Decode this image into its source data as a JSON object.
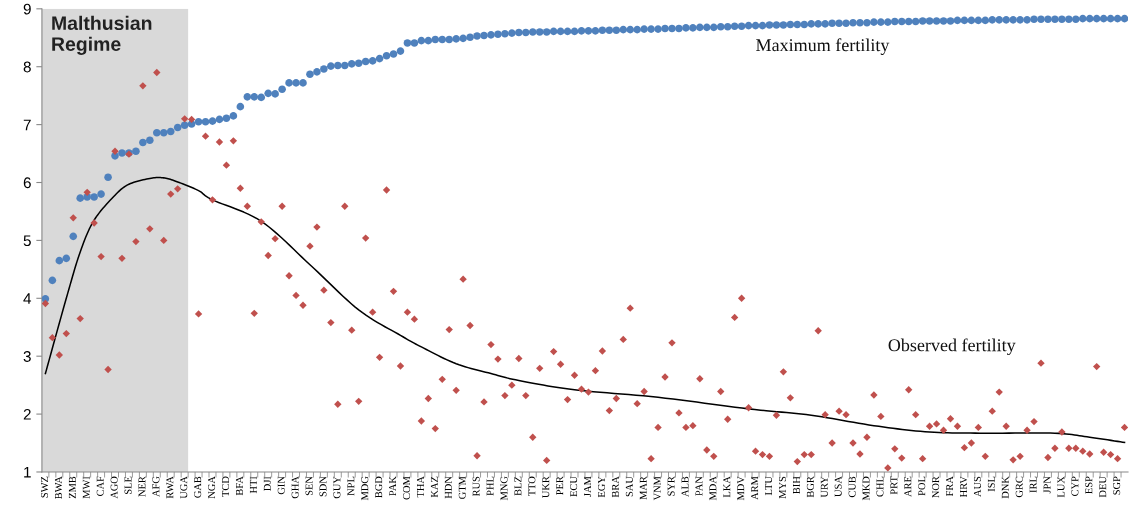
{
  "chart_data": {
    "type": "scatter",
    "categories": [
      "SWZ",
      null,
      "BWA",
      null,
      "ZMB",
      null,
      "MWI",
      null,
      "CAF",
      null,
      "AGO",
      null,
      "SLE",
      null,
      "NER",
      null,
      "AFG",
      null,
      "RWA",
      null,
      "UGA",
      null,
      "GAB",
      null,
      "NGA",
      null,
      "TCD",
      null,
      "BFA",
      null,
      "HTI",
      null,
      "DJI",
      null,
      "GIN",
      null,
      "GHA",
      null,
      "SEN",
      null,
      "SDN",
      null,
      "GUY",
      null,
      "NPL",
      null,
      "MDG",
      null,
      "BGD",
      null,
      "PAK",
      null,
      "COM",
      null,
      "THA",
      null,
      "KAZ",
      null,
      "HDN",
      null,
      "GTM",
      null,
      "RUS",
      null,
      "PHL",
      null,
      "MNG",
      null,
      "BLZ",
      null,
      "TTO",
      null,
      "UKR",
      null,
      "PER",
      null,
      "ECU",
      null,
      "JAM",
      null,
      "EGY",
      null,
      "BRA",
      null,
      "SAU",
      null,
      "MAR",
      null,
      "VNM",
      null,
      "SYR",
      null,
      "ALB",
      null,
      "PAN",
      null,
      "MDA",
      null,
      "LKA",
      null,
      "MDV",
      null,
      "ARM",
      null,
      "LTU",
      null,
      "MYS",
      null,
      "BIH",
      null,
      "BGR",
      null,
      "URY",
      null,
      "USA",
      null,
      "CUB",
      null,
      "MKD",
      null,
      "CHL",
      null,
      "PRT",
      null,
      "ARE",
      null,
      "POL",
      null,
      "NOR",
      null,
      "FRA",
      null,
      "HRV",
      null,
      "AUS",
      null,
      "ISL",
      null,
      "DNK",
      null,
      "GRC",
      null,
      "IRL",
      null,
      "JPN",
      null,
      "LUX",
      null,
      "CYP",
      null,
      "ESP",
      null,
      "DEU",
      null,
      "SGP",
      null
    ],
    "series": [
      {
        "name": "Maximum fertility",
        "marker": "circle",
        "color": "#4f81bd",
        "values": [
          3.99,
          4.31,
          4.65,
          4.69,
          5.07,
          5.73,
          5.75,
          5.75,
          5.8,
          6.09,
          6.46,
          6.51,
          6.51,
          6.54,
          6.69,
          6.73,
          6.86,
          6.86,
          6.88,
          6.95,
          6.99,
          7.01,
          7.05,
          7.05,
          7.06,
          7.09,
          7.11,
          7.15,
          7.31,
          7.48,
          7.48,
          7.47,
          7.54,
          7.53,
          7.61,
          7.72,
          7.72,
          7.72,
          7.87,
          7.91,
          7.96,
          8.01,
          8.02,
          8.02,
          8.05,
          8.06,
          8.09,
          8.1,
          8.14,
          8.19,
          8.22,
          8.27,
          8.41,
          8.41,
          8.45,
          8.45,
          8.47,
          8.47,
          8.47,
          8.48,
          8.49,
          8.51,
          8.53,
          8.54,
          8.55,
          8.56,
          8.57,
          8.58,
          8.59,
          8.59,
          8.6,
          8.6,
          8.6,
          8.61,
          8.61,
          8.61,
          8.61,
          8.62,
          8.62,
          8.62,
          8.63,
          8.63,
          8.63,
          8.64,
          8.64,
          8.64,
          8.65,
          8.65,
          8.65,
          8.66,
          8.66,
          8.66,
          8.67,
          8.67,
          8.68,
          8.68,
          8.68,
          8.69,
          8.69,
          8.7,
          8.7,
          8.71,
          8.71,
          8.71,
          8.72,
          8.72,
          8.72,
          8.73,
          8.73,
          8.73,
          8.74,
          8.74,
          8.74,
          8.75,
          8.75,
          8.75,
          8.76,
          8.76,
          8.76,
          8.77,
          8.77,
          8.77,
          8.78,
          8.78,
          8.78,
          8.78,
          8.79,
          8.79,
          8.79,
          8.79,
          8.79,
          8.8,
          8.8,
          8.8,
          8.8,
          8.8,
          8.81,
          8.81,
          8.81,
          8.81,
          8.81,
          8.81,
          8.82,
          8.82,
          8.82,
          8.82,
          8.82,
          8.82,
          8.82,
          8.83,
          8.83,
          8.83,
          8.83,
          8.83,
          8.83,
          8.83
        ]
      },
      {
        "name": "Observed fertility",
        "marker": "diamond",
        "color": "#c0504d",
        "values": [
          3.91,
          3.32,
          3.02,
          3.39,
          5.39,
          3.65,
          5.83,
          5.3,
          4.72,
          2.77,
          6.54,
          4.69,
          6.49,
          4.98,
          7.67,
          5.2,
          7.9,
          5.0,
          5.8,
          5.89,
          7.1,
          7.09,
          3.73,
          6.8,
          5.7,
          6.7,
          6.3,
          6.72,
          5.9,
          5.59,
          3.74,
          5.32,
          4.74,
          5.03,
          5.59,
          4.39,
          4.05,
          3.88,
          4.9,
          5.23,
          4.14,
          3.58,
          2.17,
          5.59,
          3.45,
          2.22,
          5.04,
          3.76,
          2.98,
          5.87,
          4.12,
          2.83,
          3.76,
          3.64,
          1.88,
          2.27,
          1.75,
          2.6,
          3.46,
          2.41,
          4.33,
          3.53,
          1.28,
          2.21,
          3.2,
          2.95,
          2.32,
          2.5,
          2.96,
          2.32,
          1.6,
          2.79,
          1.2,
          3.08,
          2.86,
          2.25,
          2.67,
          2.43,
          2.38,
          2.75,
          3.09,
          2.06,
          2.27,
          3.29,
          3.83,
          2.18,
          2.39,
          1.23,
          1.77,
          2.64,
          3.23,
          2.02,
          1.77,
          1.8,
          2.61,
          1.38,
          1.27,
          2.39,
          1.91,
          3.67,
          4.0,
          2.11,
          1.36,
          1.3,
          1.27,
          1.98,
          2.73,
          2.28,
          1.18,
          1.3,
          1.3,
          3.44,
          1.99,
          1.5,
          2.05,
          1.99,
          1.5,
          1.31,
          1.6,
          2.33,
          1.96,
          1.07,
          1.4,
          1.24,
          2.42,
          1.99,
          1.23,
          1.79,
          1.83,
          1.72,
          1.92,
          1.79,
          1.42,
          1.5,
          1.77,
          1.27,
          2.05,
          2.38,
          1.79,
          1.21,
          1.27,
          1.72,
          1.87,
          2.88,
          1.25,
          1.41,
          1.69,
          1.41,
          1.41,
          1.36,
          1.31,
          2.82,
          1.34,
          1.3,
          1.23,
          1.77
        ]
      },
      {
        "type": "line",
        "marker": "none",
        "line_style": "solid",
        "color": "#000000",
        "values": [
          2.7,
          null,
          null,
          4.0,
          null,
          4.8,
          null,
          5.35,
          null,
          null,
          5.78,
          null,
          5.97,
          null,
          null,
          6.07,
          null,
          6.08,
          null,
          6.01,
          null,
          null,
          5.86,
          null,
          5.7,
          null,
          null,
          null,
          null,
          null,
          null,
          5.33,
          null,
          null,
          null,
          null,
          null,
          null,
          4.58,
          null,
          null,
          null,
          null,
          null,
          null,
          3.8,
          null,
          null,
          null,
          null,
          null,
          3.36,
          null,
          null,
          3.16,
          null,
          null,
          null,
          null,
          2.87,
          null,
          null,
          null,
          null,
          2.7,
          null,
          null,
          null,
          2.58,
          null,
          null,
          null,
          null,
          null,
          null,
          null,
          2.42,
          null,
          null,
          null,
          null,
          null,
          null,
          null,
          null,
          null,
          null,
          null,
          2.29,
          null,
          null,
          null,
          null,
          null,
          null,
          null,
          null,
          null,
          null,
          null,
          null,
          2.09,
          null,
          null,
          null,
          null,
          null,
          null,
          null,
          null,
          1.98,
          null,
          null,
          null,
          null,
          null,
          null,
          null,
          null,
          1.8,
          null,
          null,
          null,
          null,
          null,
          null,
          null,
          1.69,
          null,
          null,
          null,
          null,
          null,
          null,
          null,
          1.67,
          null,
          null,
          null,
          null,
          null,
          null,
          null,
          null,
          null,
          1.67,
          null,
          null,
          null,
          null,
          1.6,
          null,
          null,
          null,
          null,
          1.51
        ]
      }
    ],
    "bands": [
      {
        "axis": "x",
        "from": "SWZ",
        "to": "UGA",
        "label": "Malthusian\nRegime",
        "color": "#d9d9d9"
      }
    ],
    "ylim": [
      1,
      9
    ],
    "yticks": [
      1,
      2,
      3,
      4,
      5,
      6,
      7,
      8,
      9
    ],
    "grid": false,
    "legend": false
  }
}
